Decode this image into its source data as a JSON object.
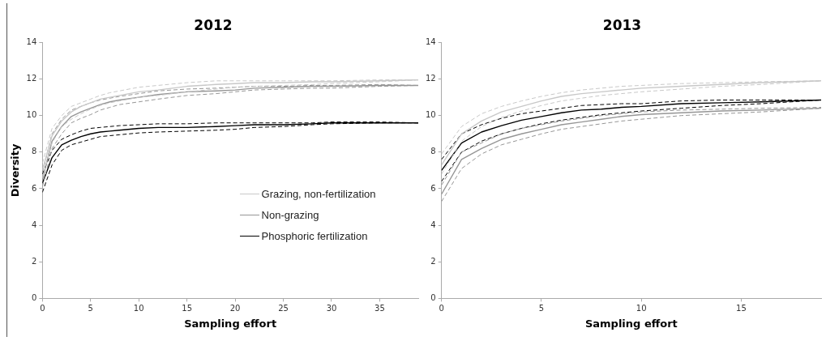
{
  "chart_data": [
    {
      "type": "line",
      "title": "2012",
      "xlabel": "Sampling effort",
      "ylabel": "Diversity",
      "xlim": [
        0,
        39
      ],
      "xticks": [
        0,
        5,
        10,
        15,
        20,
        25,
        30,
        35
      ],
      "ylim": [
        0,
        14
      ],
      "yticks": [
        0,
        2,
        4,
        6,
        8,
        10,
        12,
        14
      ],
      "grid": false,
      "legend": "right",
      "marker": "none",
      "x": [
        0,
        1,
        2,
        3,
        4,
        5,
        6,
        7,
        8,
        10,
        12,
        15,
        18,
        20,
        22,
        25,
        28,
        30,
        35,
        39
      ],
      "series": [
        {
          "name": "Grazing, non-fertilization",
          "color": "#c8c8c8",
          "values": [
            7.0,
            8.9,
            9.7,
            10.2,
            10.5,
            10.7,
            10.9,
            11.0,
            11.1,
            11.3,
            11.4,
            11.6,
            11.7,
            11.75,
            11.8,
            11.8,
            11.85,
            11.85,
            11.9,
            11.95
          ]
        },
        {
          "color": "#c8c8c8",
          "line_style": "dashed",
          "values": [
            6.6,
            8.5,
            9.4,
            9.8,
            10.1,
            10.35,
            10.55,
            10.7,
            10.8,
            11.0,
            11.1,
            11.3,
            11.45,
            11.55,
            11.6,
            11.65,
            11.7,
            11.75,
            11.85,
            11.95
          ]
        },
        {
          "color": "#c8c8c8",
          "line_style": "dashed",
          "values": [
            7.4,
            9.3,
            10.0,
            10.5,
            10.7,
            10.9,
            11.1,
            11.25,
            11.35,
            11.55,
            11.65,
            11.8,
            11.9,
            11.9,
            11.9,
            11.9,
            11.9,
            11.9,
            11.95,
            11.95
          ]
        },
        {
          "name": "Non-grazing",
          "color": "#969696",
          "values": [
            6.5,
            8.6,
            9.4,
            9.95,
            10.2,
            10.4,
            10.6,
            10.75,
            10.85,
            11.0,
            11.15,
            11.3,
            11.35,
            11.4,
            11.5,
            11.55,
            11.6,
            11.6,
            11.65,
            11.65
          ]
        },
        {
          "color": "#969696",
          "line_style": "dashed",
          "values": [
            6.1,
            8.2,
            9.0,
            9.6,
            9.85,
            10.05,
            10.3,
            10.45,
            10.6,
            10.75,
            10.9,
            11.1,
            11.2,
            11.3,
            11.4,
            11.45,
            11.5,
            11.5,
            11.6,
            11.65
          ]
        },
        {
          "color": "#969696",
          "line_style": "dashed",
          "values": [
            6.9,
            9.0,
            9.8,
            10.3,
            10.5,
            10.7,
            10.85,
            10.95,
            11.05,
            11.2,
            11.35,
            11.45,
            11.5,
            11.55,
            11.6,
            11.6,
            11.65,
            11.65,
            11.7,
            11.65
          ]
        },
        {
          "name": "Phosphoric fertilization",
          "color": "#000000",
          "values": [
            6.3,
            7.7,
            8.4,
            8.65,
            8.85,
            9.0,
            9.1,
            9.15,
            9.2,
            9.3,
            9.35,
            9.35,
            9.4,
            9.45,
            9.5,
            9.5,
            9.55,
            9.6,
            9.6,
            9.6
          ]
        },
        {
          "color": "#000000",
          "line_style": "dashed",
          "values": [
            5.8,
            7.3,
            8.1,
            8.4,
            8.55,
            8.7,
            8.85,
            8.9,
            8.95,
            9.05,
            9.1,
            9.15,
            9.2,
            9.25,
            9.35,
            9.4,
            9.5,
            9.55,
            9.6,
            9.6
          ]
        },
        {
          "color": "#000000",
          "line_style": "dashed",
          "values": [
            6.8,
            8.1,
            8.7,
            8.95,
            9.15,
            9.3,
            9.35,
            9.4,
            9.45,
            9.5,
            9.55,
            9.55,
            9.6,
            9.6,
            9.6,
            9.6,
            9.6,
            9.65,
            9.65,
            9.6
          ]
        }
      ]
    },
    {
      "type": "line",
      "title": "2013",
      "xlabel": "Sampling effort",
      "xlim": [
        0,
        19
      ],
      "xticks": [
        0,
        5,
        10,
        15
      ],
      "ylim": [
        0,
        14
      ],
      "yticks": [
        0,
        2,
        4,
        6,
        8,
        10,
        12,
        14
      ],
      "grid": false,
      "marker": "none",
      "x": [
        0,
        1,
        2,
        3,
        4,
        5,
        6,
        7,
        8,
        9,
        10,
        12,
        14,
        16,
        19
      ],
      "series": [
        {
          "color": "#c8c8c8",
          "values": [
            7.3,
            9.0,
            9.7,
            10.2,
            10.5,
            10.8,
            11.05,
            11.2,
            11.3,
            11.4,
            11.5,
            11.6,
            11.7,
            11.8,
            11.9
          ]
        },
        {
          "color": "#c8c8c8",
          "line_style": "dashed",
          "values": [
            6.8,
            8.6,
            9.4,
            9.9,
            10.25,
            10.55,
            10.8,
            10.95,
            11.1,
            11.2,
            11.3,
            11.45,
            11.6,
            11.7,
            11.9
          ]
        },
        {
          "color": "#c8c8c8",
          "line_style": "dashed",
          "values": [
            7.9,
            9.4,
            10.1,
            10.5,
            10.8,
            11.05,
            11.25,
            11.4,
            11.5,
            11.6,
            11.65,
            11.75,
            11.8,
            11.85,
            11.9
          ]
        },
        {
          "color": "#969696",
          "values": [
            5.7,
            7.6,
            8.2,
            8.7,
            9.0,
            9.25,
            9.5,
            9.65,
            9.8,
            9.95,
            10.05,
            10.15,
            10.25,
            10.3,
            10.4
          ]
        },
        {
          "color": "#969696",
          "line_style": "dashed",
          "values": [
            5.3,
            7.1,
            7.9,
            8.4,
            8.7,
            9.0,
            9.25,
            9.4,
            9.55,
            9.7,
            9.8,
            10.0,
            10.1,
            10.2,
            10.4
          ]
        },
        {
          "color": "#969696",
          "line_style": "dashed",
          "values": [
            6.2,
            8.0,
            8.5,
            9.0,
            9.3,
            9.5,
            9.7,
            9.85,
            10.0,
            10.1,
            10.2,
            10.3,
            10.35,
            10.4,
            10.45
          ]
        },
        {
          "color": "#000000",
          "values": [
            7.0,
            8.5,
            9.1,
            9.45,
            9.75,
            9.95,
            10.15,
            10.3,
            10.35,
            10.45,
            10.5,
            10.65,
            10.7,
            10.75,
            10.85
          ]
        },
        {
          "color": "#000000",
          "line_style": "dashed",
          "values": [
            6.4,
            8.0,
            8.6,
            9.0,
            9.3,
            9.55,
            9.75,
            9.9,
            10.05,
            10.15,
            10.25,
            10.4,
            10.55,
            10.65,
            10.85
          ]
        },
        {
          "color": "#000000",
          "line_style": "dashed",
          "values": [
            7.6,
            9.0,
            9.5,
            9.85,
            10.1,
            10.25,
            10.4,
            10.55,
            10.6,
            10.65,
            10.65,
            10.8,
            10.85,
            10.85,
            10.85
          ]
        }
      ]
    }
  ]
}
